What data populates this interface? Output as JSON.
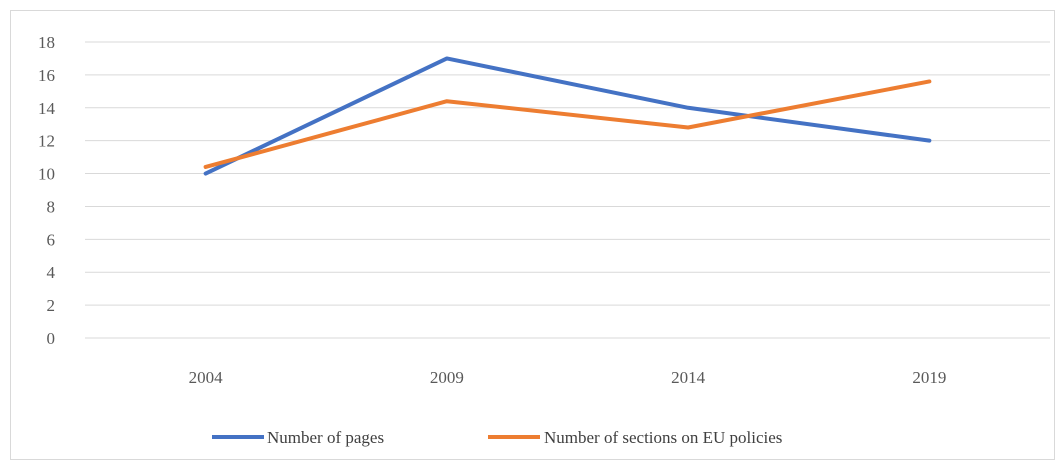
{
  "chart_data": {
    "type": "line",
    "categories": [
      "2004",
      "2009",
      "2014",
      "2019"
    ],
    "series": [
      {
        "name": "Number of pages",
        "values": [
          10,
          17,
          14,
          12
        ],
        "color": "#4472C4"
      },
      {
        "name": "Number of sections on EU policies",
        "values": [
          10.4,
          14.4,
          12.8,
          15.6
        ],
        "color": "#ED7D31"
      }
    ],
    "y_ticks": [
      "0",
      "2",
      "4",
      "6",
      "8",
      "10",
      "12",
      "14",
      "16",
      "18"
    ],
    "ylim": [
      0,
      18
    ],
    "grid": true,
    "legend_position": "bottom"
  }
}
